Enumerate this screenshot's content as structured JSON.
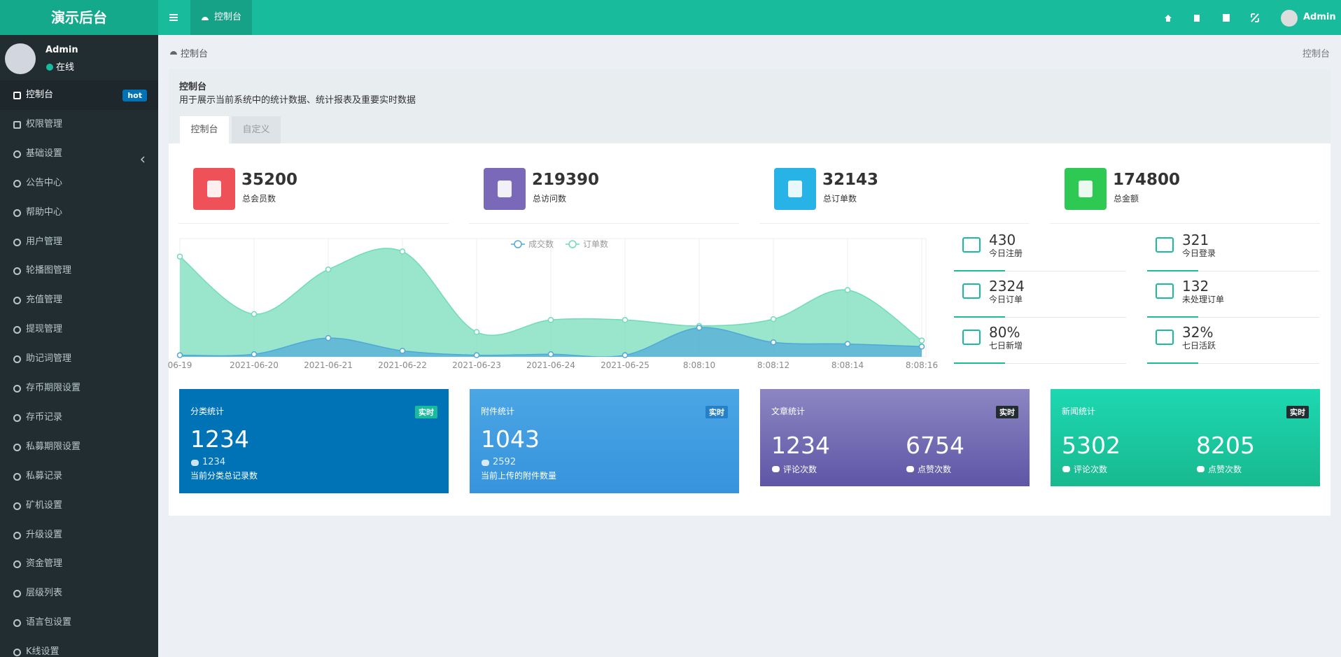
{
  "header": {
    "logo": "演示后台",
    "tab": "控制台",
    "user": "Admin"
  },
  "sidebar": {
    "user": "Admin",
    "status": "在线",
    "menu": [
      {
        "label": "控制台",
        "badge": "hot"
      },
      {
        "label": "权限管理"
      },
      {
        "label": "基础设置"
      },
      {
        "label": "公告中心"
      },
      {
        "label": "帮助中心"
      },
      {
        "label": "用户管理"
      },
      {
        "label": "轮播图管理"
      },
      {
        "label": "充值管理"
      },
      {
        "label": "提现管理"
      },
      {
        "label": "助记词管理"
      },
      {
        "label": "存币期限设置"
      },
      {
        "label": "存币记录"
      },
      {
        "label": "私募期限设置"
      },
      {
        "label": "私募记录"
      },
      {
        "label": "矿机设置"
      },
      {
        "label": "升级设置"
      },
      {
        "label": "资金管理"
      },
      {
        "label": "层级列表"
      },
      {
        "label": "语言包设置"
      },
      {
        "label": "K线设置"
      }
    ]
  },
  "breadcrumb": {
    "left": "控制台",
    "right": "控制台"
  },
  "panel": {
    "title": "控制台",
    "description": "用于展示当前系统中的统计数据、统计报表及重要实时数据",
    "tabs": [
      "控制台",
      "自定义"
    ]
  },
  "stats": [
    {
      "value": 35200,
      "label": "总会员数"
    },
    {
      "value": 219390,
      "label": "总访问数"
    },
    {
      "value": 32143,
      "label": "总订单数"
    },
    {
      "value": 174800,
      "label": "总金额"
    }
  ],
  "mini_stats": [
    {
      "value": 430,
      "label": "今日注册"
    },
    {
      "value": 321,
      "label": "今日登录"
    },
    {
      "value": 2324,
      "label": "今日订单"
    },
    {
      "value": 132,
      "label": "未处理订单"
    },
    {
      "value": "80%",
      "label": "七日新增"
    },
    {
      "value": "32%",
      "label": "七日活跃"
    }
  ],
  "cards": [
    {
      "title": "分类统计",
      "badge": "实时",
      "value": 1234,
      "sub_value": 1234,
      "label": "当前分类总记录数"
    },
    {
      "title": "附件统计",
      "badge": "实时",
      "value": 1043,
      "sub_value": 2592,
      "label": "当前上传的附件数量"
    },
    {
      "title": "文章统计",
      "badge": "实时",
      "items": [
        {
          "value": 1234,
          "label": "评论次数"
        },
        {
          "value": 6754,
          "label": "点赞次数"
        }
      ]
    },
    {
      "title": "新闻统计",
      "badge": "实时",
      "items": [
        {
          "value": 5302,
          "label": "评论次数"
        },
        {
          "value": 8205,
          "label": "点赞次数"
        }
      ]
    }
  ],
  "chart_data": {
    "type": "area",
    "categories": [
      "06-19",
      "2021-06-20",
      "2021-06-21",
      "2021-06-22",
      "2021-06-23",
      "2021-06-24",
      "2021-06-25",
      "8:08:10",
      "8:08:12",
      "8:08:14",
      "8:08:16"
    ],
    "ylim": [
      0,
      1000
    ],
    "series": [
      {
        "name": "成交数",
        "color": "#4fa8d8",
        "values": [
          14,
          22,
          159,
          51,
          14,
          22,
          14,
          246,
          123,
          109,
          87
        ]
      },
      {
        "name": "订单数",
        "color": "#6fdcb8",
        "values": [
          848,
          362,
          739,
          891,
          210,
          312,
          312,
          261,
          319,
          565,
          138
        ]
      }
    ]
  }
}
